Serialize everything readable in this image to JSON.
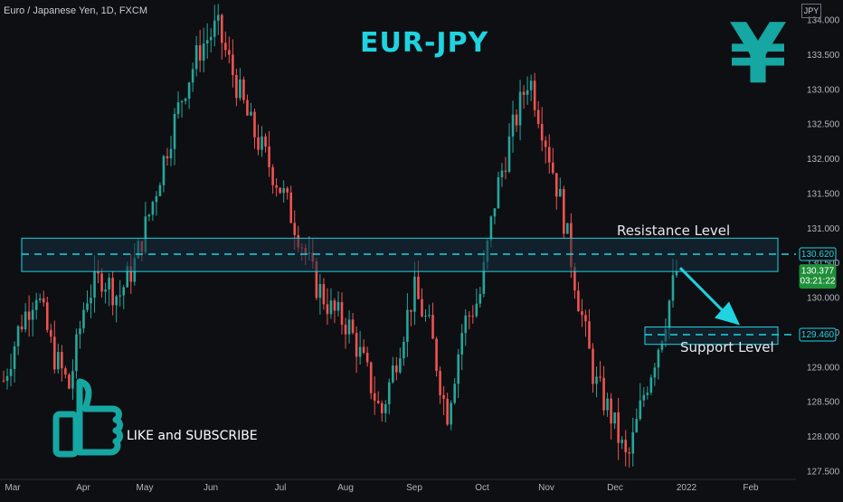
{
  "header": {
    "symbol_line": "Euro / Japanese Yen, 1D, FXCM",
    "currency": "JPY"
  },
  "title": "EUR-JPY",
  "yen_symbol": "¥",
  "annotations": {
    "resistance": "Resistance Level",
    "support": "Support Level",
    "cta": "LIKE and SUBSCRIBE"
  },
  "icons": {
    "thumb": "thumbs-up-icon"
  },
  "colors": {
    "background": "#0e0f13",
    "up": "#26a69a",
    "down": "#ef5350",
    "cyan": "#1fd3e0",
    "zone_fill": "#15303f",
    "price_tag_green": "#1f8f3a"
  },
  "chart_data": {
    "type": "candlestick",
    "y_axis_ticks": [
      "127.500",
      "128.000",
      "128.500",
      "129.000",
      "129.500",
      "130.000",
      "130.500",
      "131.000",
      "131.500",
      "132.000",
      "132.500",
      "133.000",
      "133.500",
      "134.000"
    ],
    "ylim": [
      127.4,
      134.1
    ],
    "x_axis_ticks": [
      "Mar",
      "Apr",
      "May",
      "Jun",
      "Jul",
      "Aug",
      "Sep",
      "Oct",
      "Nov",
      "Dec",
      "2022",
      "Feb"
    ],
    "resistance_zone": {
      "low": 130.37,
      "high": 130.85,
      "level": 130.62,
      "label": "130.620"
    },
    "support_zone": {
      "low": 129.32,
      "high": 129.57,
      "level": 129.46,
      "label": "129.460"
    },
    "last_price": {
      "value": 130.377,
      "label": "130.377",
      "countdown": "03:21:22"
    },
    "close_path": [
      [
        "Mar",
        128.8
      ],
      [
        "Mar",
        129.6
      ],
      [
        "Mar",
        130.1
      ],
      [
        "Mar",
        129.2
      ],
      [
        "Apr",
        128.7
      ],
      [
        "Apr",
        130.0
      ],
      [
        "Apr",
        130.3
      ],
      [
        "Apr",
        130.0
      ],
      [
        "Apr",
        130.5
      ],
      [
        "Apr",
        131.3
      ],
      [
        "May",
        132.2
      ],
      [
        "May",
        133.0
      ],
      [
        "May",
        133.6
      ],
      [
        "Jun",
        133.9
      ],
      [
        "Jun",
        133.2
      ],
      [
        "Jun",
        132.5
      ],
      [
        "Jun",
        132.0
      ],
      [
        "Jul",
        131.5
      ],
      [
        "Jul",
        130.9
      ],
      [
        "Jul",
        130.2
      ],
      [
        "Jul",
        129.8
      ],
      [
        "Aug",
        129.6
      ],
      [
        "Aug",
        129.0
      ],
      [
        "Aug",
        128.3
      ],
      [
        "Aug",
        129.2
      ],
      [
        "Sep",
        130.1
      ],
      [
        "Sep",
        129.5
      ],
      [
        "Sep",
        128.3
      ],
      [
        "Sep",
        129.6
      ],
      [
        "Oct",
        130.0
      ],
      [
        "Oct",
        131.5
      ],
      [
        "Oct",
        132.4
      ],
      [
        "Oct",
        133.2
      ],
      [
        "Nov",
        132.3
      ],
      [
        "Nov",
        131.3
      ],
      [
        "Nov",
        130.0
      ],
      [
        "Nov",
        128.8
      ],
      [
        "Dec",
        128.3
      ],
      [
        "Dec",
        127.6
      ],
      [
        "Dec",
        128.6
      ],
      [
        "Dec",
        129.4
      ],
      [
        "Dec",
        130.38
      ]
    ]
  }
}
